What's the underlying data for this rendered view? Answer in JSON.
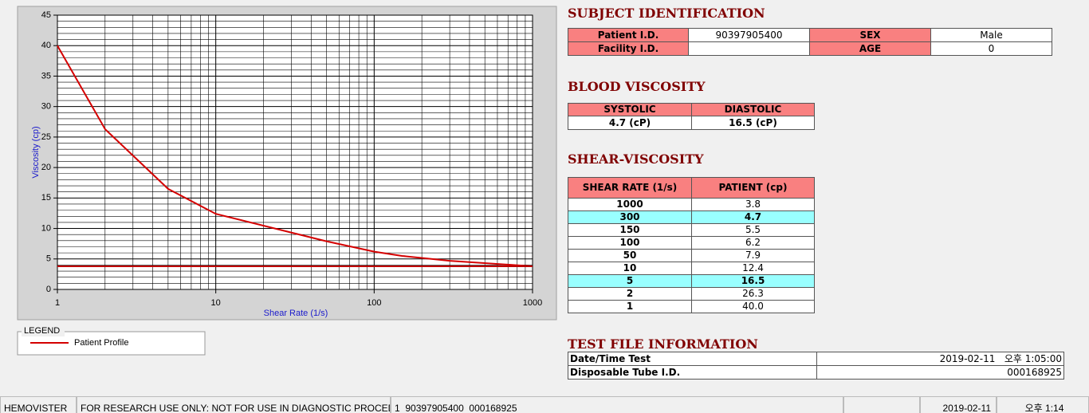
{
  "chart_data": {
    "type": "line",
    "xlabel": "Shear Rate (1/s)",
    "ylabel": "Viscosity (cp)",
    "x": [
      1,
      2,
      5,
      10,
      50,
      100,
      150,
      300,
      1000
    ],
    "series": [
      {
        "name": "Patient Profile",
        "color": "#d40000",
        "values": [
          40.0,
          26.3,
          16.5,
          12.4,
          7.9,
          6.2,
          5.5,
          4.7,
          3.8
        ]
      },
      {
        "color": "#c00000",
        "values": [
          3.8,
          3.8,
          3.8,
          3.8,
          3.8,
          3.8,
          3.8,
          3.8,
          3.8
        ]
      }
    ],
    "xscale": "log",
    "xlim": [
      1,
      1000
    ],
    "xticks": [
      1,
      10,
      100,
      1000
    ],
    "xminorticks": [
      2,
      3,
      4,
      5,
      6,
      7,
      8,
      9,
      20,
      30,
      40,
      50,
      60,
      70,
      80,
      90,
      200,
      300,
      400,
      500,
      600,
      700,
      800,
      900
    ],
    "ylim": [
      0,
      45
    ],
    "yticks": [
      0,
      5,
      10,
      15,
      20,
      25,
      30,
      35,
      40,
      45
    ],
    "yminorticks": [
      1,
      2,
      3,
      4,
      6,
      7,
      8,
      9,
      11,
      12,
      13,
      14,
      16,
      17,
      18,
      19,
      21,
      22,
      23,
      24,
      26,
      27,
      28,
      29,
      31,
      32,
      33,
      34,
      36,
      37,
      38,
      39,
      41,
      42,
      43,
      44
    ],
    "grid": true,
    "legend_title": "LEGEND"
  },
  "subject": {
    "title": "SUBJECT IDENTIFICATION",
    "patient_id_label": "Patient I.D.",
    "patient_id": "90397905400",
    "sex_label": "SEX",
    "sex": "Male",
    "facility_id_label": "Facility I.D.",
    "age_label": "AGE",
    "age": "0"
  },
  "blood_viscosity": {
    "title": "BLOOD VISCOSITY",
    "headers": [
      "SYSTOLIC",
      "DIASTOLIC"
    ],
    "values": [
      "4.7 (cP)",
      "16.5 (cP)"
    ]
  },
  "shear_viscosity": {
    "title": "SHEAR-VISCOSITY",
    "headers": [
      "SHEAR RATE (1/s)",
      "PATIENT (cp)"
    ],
    "rows": [
      [
        "1000",
        "3.8"
      ],
      [
        "300",
        "4.7"
      ],
      [
        "150",
        "5.5"
      ],
      [
        "100",
        "6.2"
      ],
      [
        "50",
        "7.9"
      ],
      [
        "10",
        "12.4"
      ],
      [
        "5",
        "16.5"
      ],
      [
        "2",
        "26.3"
      ],
      [
        "1",
        "40.0"
      ]
    ],
    "highlighted_rows": [
      1,
      6
    ]
  },
  "test_file": {
    "title": "TEST FILE INFORMATION",
    "rows": [
      [
        "Date/Time Test",
        "2019-02-11   오후 1:05:00"
      ],
      [
        "Disposable Tube I.D.",
        "000168925"
      ]
    ]
  },
  "status_bar": [
    "HEMOVISTER",
    "FOR RESEARCH USE ONLY: NOT FOR USE IN DIAGNOSTIC PROCEDURES",
    "1  90397905400  000168925",
    "2019-02-11",
    "오후 1:14"
  ]
}
